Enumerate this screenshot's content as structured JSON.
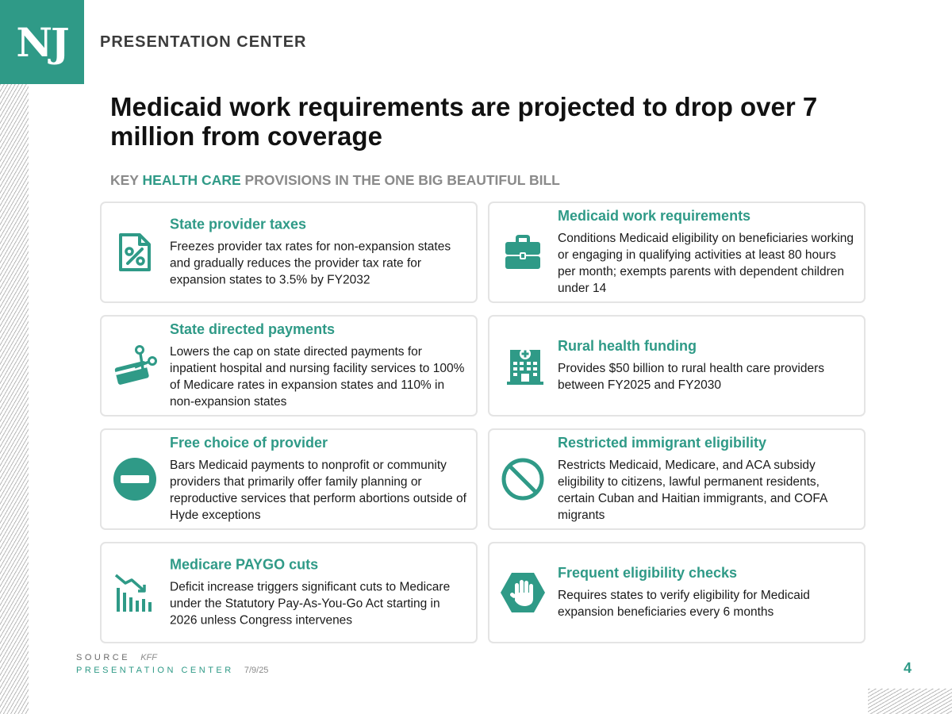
{
  "header": {
    "logo_text": "NJ",
    "brand": "PRESENTATION CENTER"
  },
  "title": "Medicaid work requirements are projected to drop over 7 million from coverage",
  "subtitle": {
    "prefix": "KEY ",
    "highlight": "HEALTH CARE",
    "suffix": " PROVISIONS IN THE ONE BIG BEAUTIFUL BILL"
  },
  "cards": [
    {
      "title": "State provider taxes",
      "text": "Freezes provider tax rates for non-expansion states and gradually reduces the provider tax rate for expansion states to 3.5% by FY2032",
      "icon": "percent-document-icon"
    },
    {
      "title": "Medicaid work requirements",
      "text": "Conditions Medicaid eligibility on beneficiaries working or engaging in qualifying activities at least 80 hours per month; exempts parents with dependent children under 14",
      "icon": "briefcase-icon"
    },
    {
      "title": "State directed payments",
      "text": "Lowers the cap on state directed payments for inpatient hospital and nursing facility services to 100% of Medicare rates in expansion states and 110% in non-expansion states",
      "icon": "cut-card-icon"
    },
    {
      "title": "Rural health funding",
      "text": "Provides $50 billion to rural health care providers between FY2025 and FY2030",
      "icon": "hospital-icon"
    },
    {
      "title": "Free choice of provider",
      "text": "Bars Medicaid payments to nonprofit or community providers that primarily offer family planning or reproductive services that perform abortions outside of Hyde exceptions",
      "icon": "minus-circle-icon"
    },
    {
      "title": "Restricted immigrant eligibility",
      "text": "Restricts Medicaid, Medicare, and ACA subsidy eligibility to citizens, lawful permanent residents, certain Cuban and Haitian immigrants, and COFA migrants",
      "icon": "prohibited-icon"
    },
    {
      "title": "Medicare PAYGO cuts",
      "text": "Deficit increase triggers significant cuts to Medicare under the Statutory Pay-As-You-Go Act starting in 2026 unless Congress intervenes",
      "icon": "declining-chart-icon"
    },
    {
      "title": "Frequent eligibility checks",
      "text": "Requires states to verify eligibility for Medicaid expansion beneficiaries every 6 months",
      "icon": "stop-hand-icon"
    }
  ],
  "footer": {
    "source_label": "SOURCE",
    "source_value": "KFF",
    "center_label": "PRESENTATION CENTER",
    "date": "7/9/25",
    "page_number": "4"
  },
  "colors": {
    "accent": "#2f9a87",
    "subtitle_gray": "#8a8a8a",
    "card_border": "#e4e4e4"
  }
}
